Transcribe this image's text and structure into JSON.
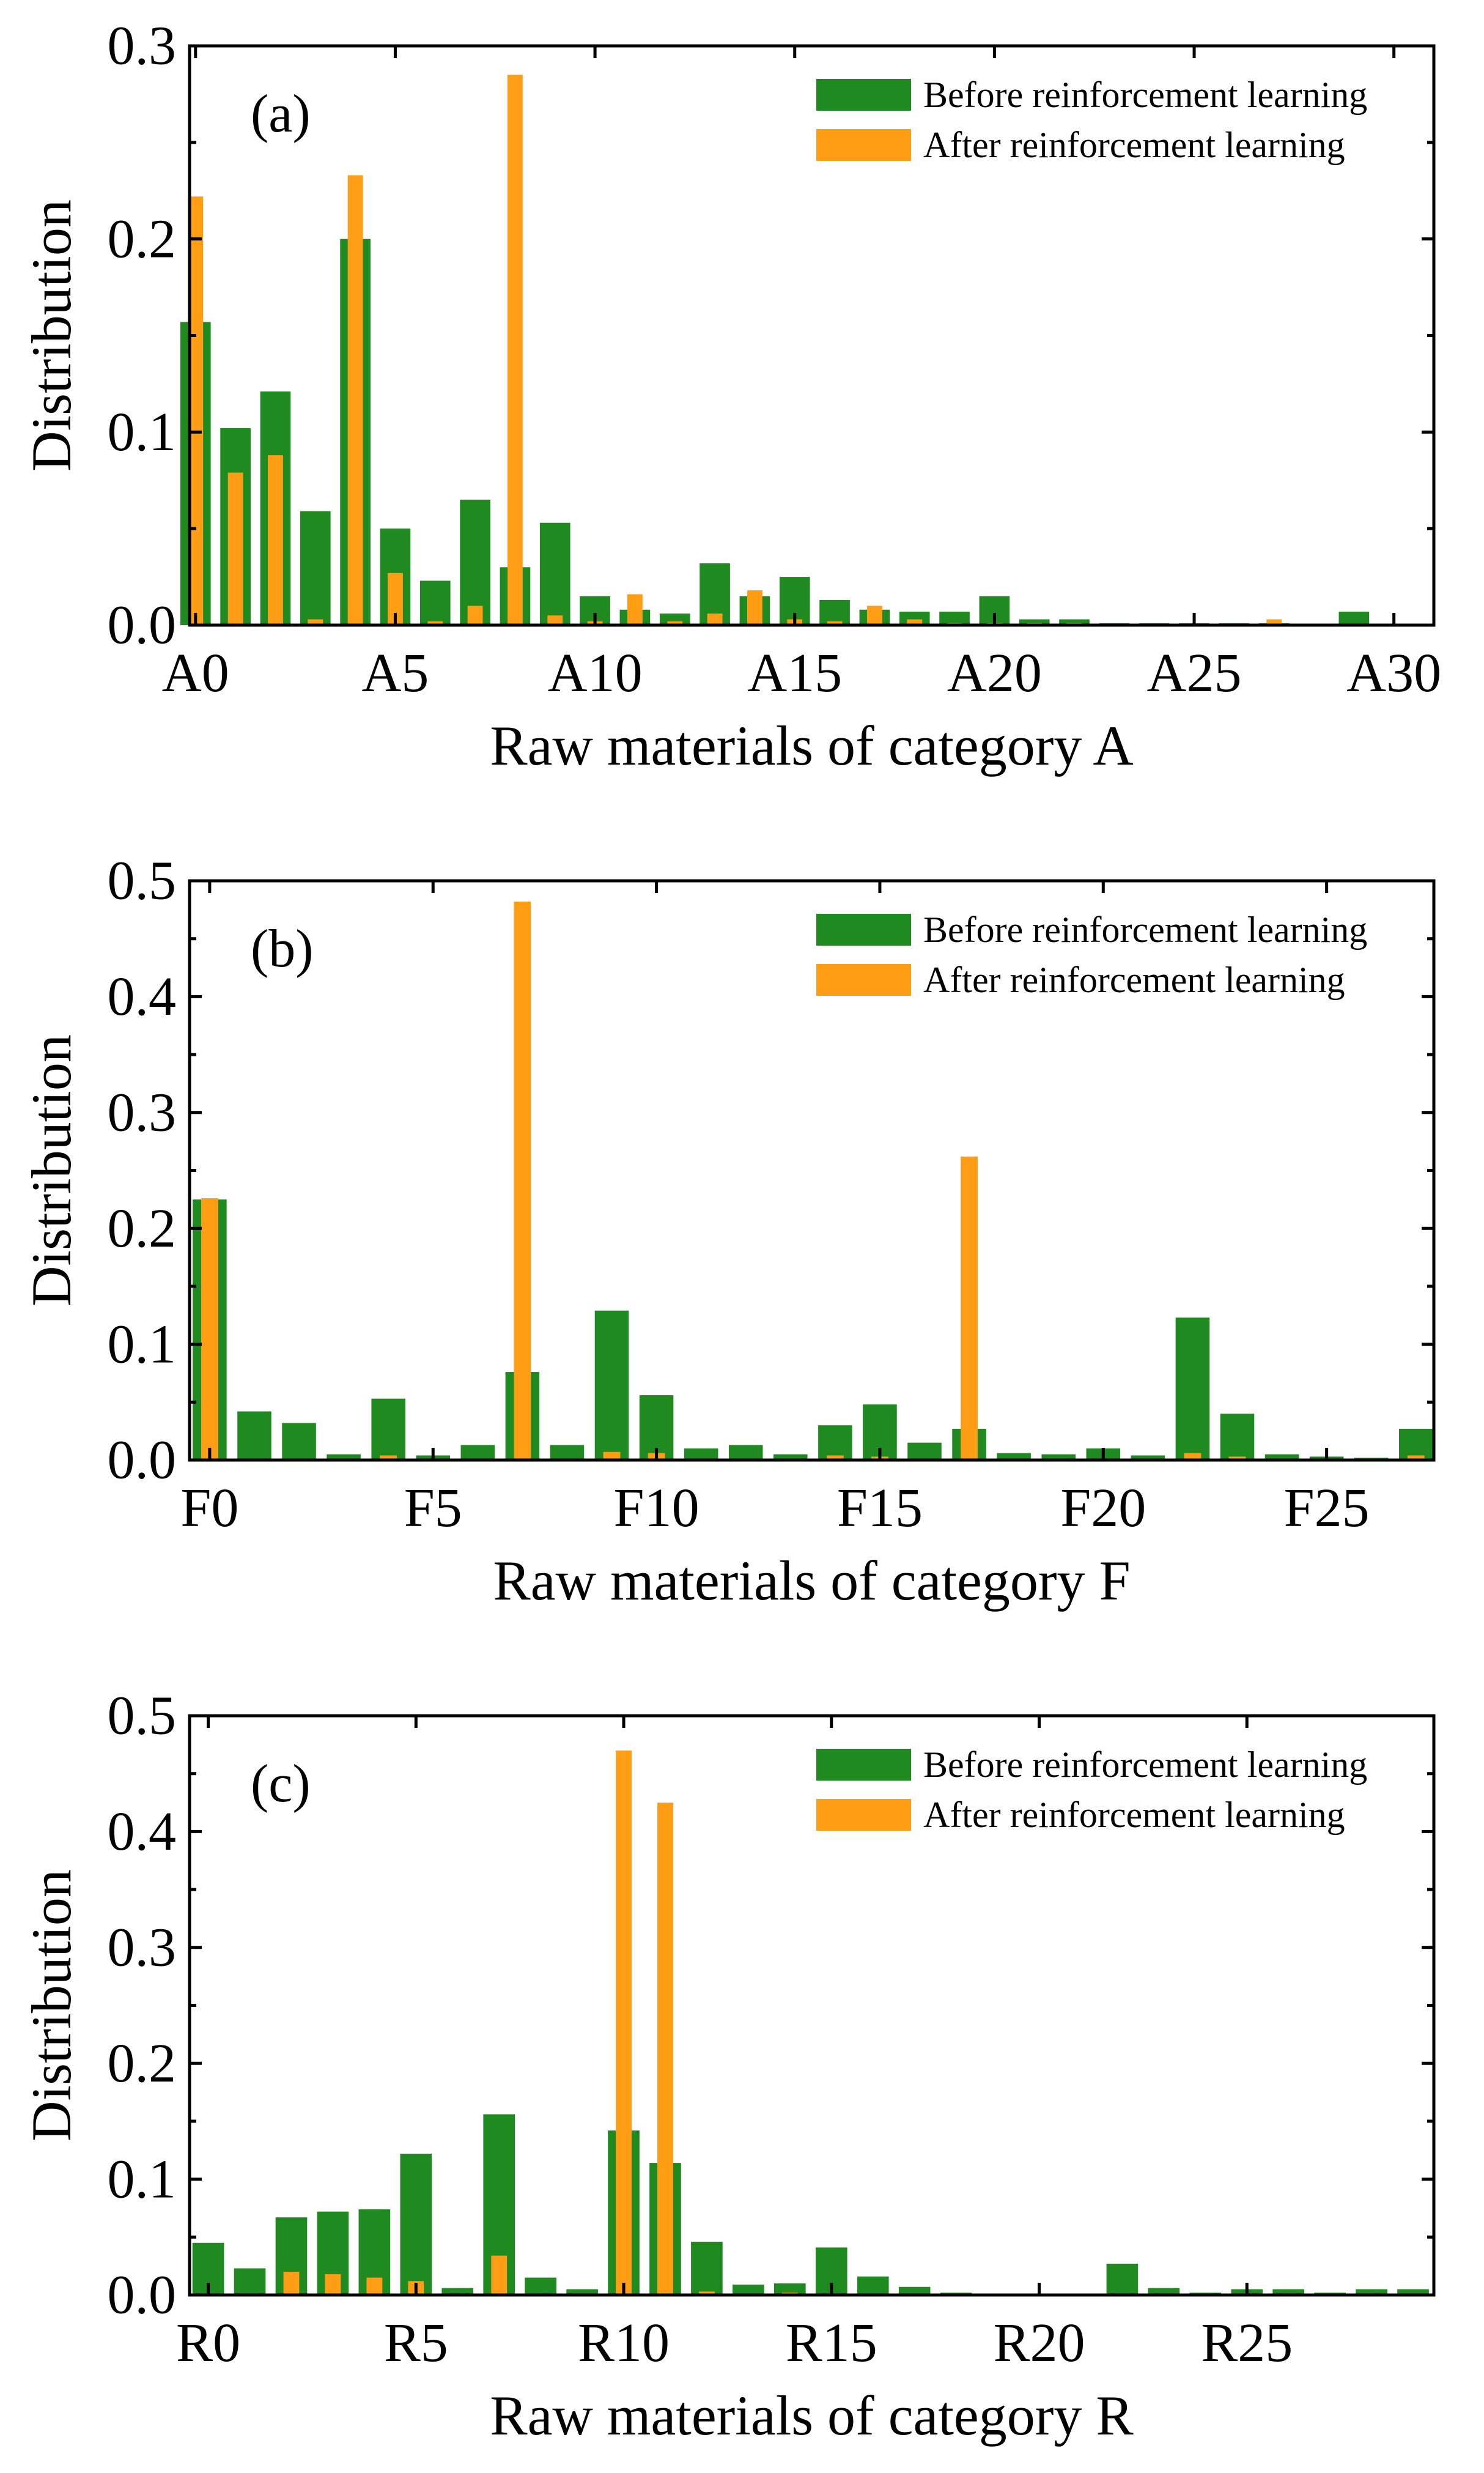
{
  "colors": {
    "before": "#1f8a1f",
    "after": "#ff9d14",
    "axis": "#000000",
    "background": "#ffffff"
  },
  "chart_data": [
    {
      "type": "bar",
      "panel_label": "(a)",
      "xlabel": "Raw materials of category A",
      "ylabel": "Distribution",
      "ylim": [
        0,
        0.3
      ],
      "yticks": [
        "0.0",
        "0.1",
        "0.2",
        "0.3"
      ],
      "xtick_labels": [
        "A0",
        "A5",
        "A10",
        "A15",
        "A20",
        "A25",
        "A30"
      ],
      "xtick_positions": [
        0,
        5,
        10,
        15,
        20,
        25,
        30
      ],
      "xlim": [
        -0.15,
        31
      ],
      "legend_placement": "top-right",
      "grid": false,
      "series": [
        {
          "name": "Before reinforcement learning",
          "values": [
            0.157,
            0.102,
            0.121,
            0.059,
            0.2,
            0.05,
            0.023,
            0.065,
            0.03,
            0.053,
            0.015,
            0.008,
            0.006,
            0.032,
            0.015,
            0.025,
            0.013,
            0.008,
            0.007,
            0.007,
            0.015,
            0.003,
            0.003,
            0.001,
            0.001,
            0.001,
            0.001,
            0.001,
            0.0,
            0.007,
            0.0
          ]
        },
        {
          "name": "After reinforcement learning",
          "values": [
            0.222,
            0.079,
            0.088,
            0.003,
            0.233,
            0.027,
            0.002,
            0.01,
            0.285,
            0.005,
            0.002,
            0.016,
            0.002,
            0.006,
            0.018,
            0.003,
            0.002,
            0.01,
            0.003,
            0.001,
            0.001,
            0.001,
            0.001,
            0.0,
            0.0,
            0.0,
            0.0,
            0.003,
            0.0,
            0.0,
            0.0
          ]
        }
      ]
    },
    {
      "type": "bar",
      "panel_label": "(b)",
      "xlabel": "Raw materials of category F",
      "ylabel": "Distribution",
      "ylim": [
        0,
        0.5
      ],
      "yticks": [
        "0.0",
        "0.1",
        "0.2",
        "0.3",
        "0.4",
        "0.5"
      ],
      "xtick_labels": [
        "F0",
        "F5",
        "F10",
        "F15",
        "F20",
        "F25"
      ],
      "xtick_positions": [
        0,
        5,
        10,
        15,
        20,
        25
      ],
      "xlim": [
        -0.45,
        27.4
      ],
      "legend_placement": "top-right",
      "grid": false,
      "series": [
        {
          "name": "Before reinforcement learning",
          "values": [
            0.225,
            0.042,
            0.032,
            0.005,
            0.053,
            0.004,
            0.013,
            0.076,
            0.013,
            0.129,
            0.056,
            0.01,
            0.013,
            0.005,
            0.03,
            0.048,
            0.015,
            0.027,
            0.006,
            0.005,
            0.01,
            0.004,
            0.123,
            0.04,
            0.005,
            0.003,
            0.002,
            0.027
          ]
        },
        {
          "name": "After reinforcement learning",
          "values": [
            0.226,
            0.0,
            0.0,
            0.0,
            0.004,
            0.0,
            0.0,
            0.482,
            0.0,
            0.007,
            0.006,
            0.0,
            0.0,
            0.0,
            0.004,
            0.003,
            0.0,
            0.262,
            0.0,
            0.0,
            0.0,
            0.0,
            0.006,
            0.003,
            0.0,
            0.0,
            0.0,
            0.004
          ]
        }
      ]
    },
    {
      "type": "bar",
      "panel_label": "(c)",
      "xlabel": "Raw materials of category R",
      "ylabel": "Distribution",
      "ylim": [
        0,
        0.5
      ],
      "yticks": [
        "0.0",
        "0.1",
        "0.2",
        "0.3",
        "0.4",
        "0.5"
      ],
      "xtick_labels": [
        "R0",
        "R5",
        "R10",
        "R15",
        "R20",
        "R25"
      ],
      "xtick_positions": [
        0,
        5,
        10,
        15,
        20,
        25
      ],
      "xlim": [
        -0.45,
        29.5
      ],
      "legend_placement": "top-right",
      "grid": false,
      "series": [
        {
          "name": "Before reinforcement learning",
          "values": [
            0.045,
            0.023,
            0.067,
            0.072,
            0.074,
            0.122,
            0.006,
            0.156,
            0.015,
            0.005,
            0.142,
            0.114,
            0.046,
            0.009,
            0.01,
            0.041,
            0.016,
            0.007,
            0.002,
            0.001,
            0.001,
            0.001,
            0.027,
            0.006,
            0.002,
            0.005,
            0.005,
            0.002,
            0.005,
            0.005
          ]
        },
        {
          "name": "After reinforcement learning",
          "values": [
            0.0,
            0.0,
            0.02,
            0.018,
            0.015,
            0.012,
            0.0,
            0.034,
            0.0,
            0.0,
            0.47,
            0.425,
            0.003,
            0.0,
            0.002,
            0.0,
            0.0,
            0.0,
            0.0,
            0.0,
            0.0,
            0.0,
            0.0,
            0.0,
            0.0,
            0.0,
            0.0,
            0.0,
            0.0,
            0.0
          ]
        }
      ]
    }
  ]
}
